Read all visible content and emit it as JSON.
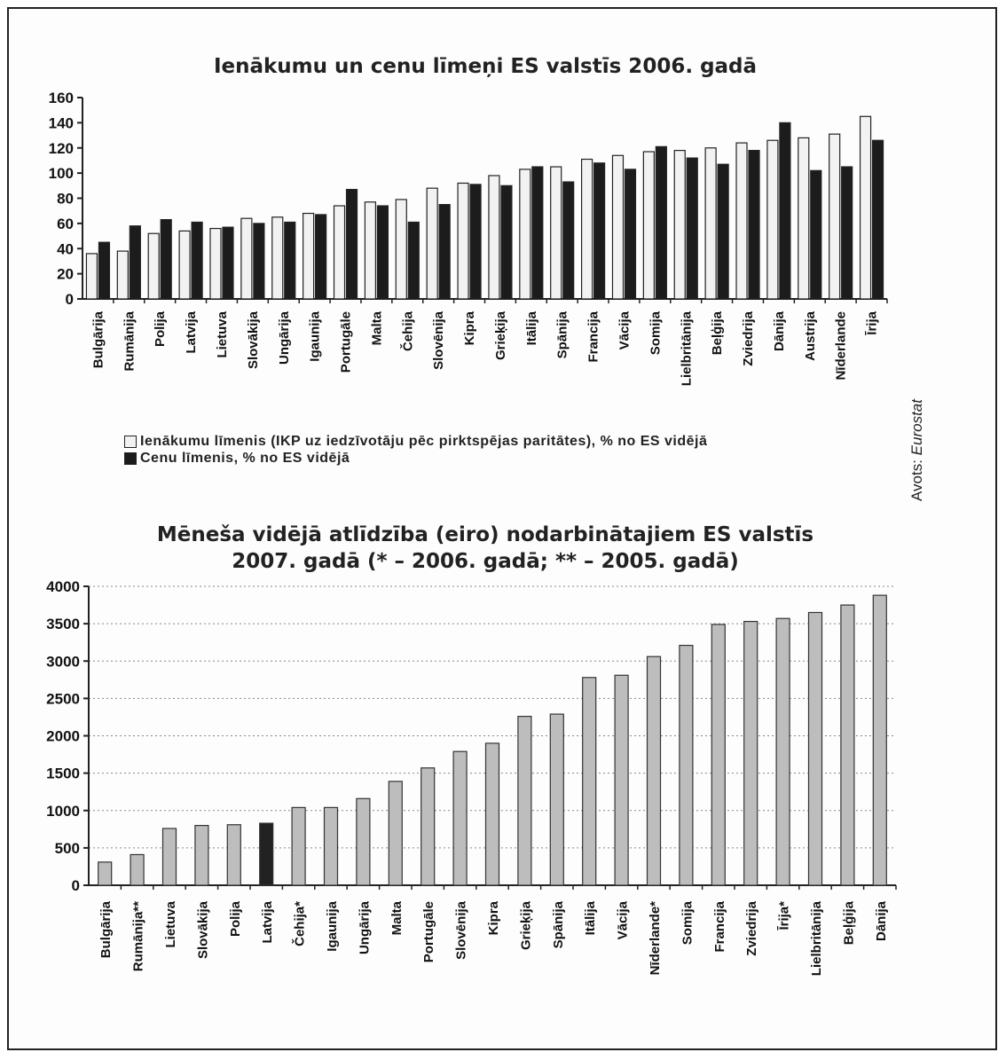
{
  "chart_data": [
    {
      "type": "bar",
      "title": "Ienākumu un cenu līmeņi ES valstīs 2006. gadā",
      "categories": [
        "Bulgārija",
        "Rumānija",
        "Polija",
        "Latvija",
        "Lietuva",
        "Slovākija",
        "Ungārija",
        "Igaunija",
        "Portugāle",
        "Malta",
        "Čehija",
        "Slovēnija",
        "Kipra",
        "Grieķija",
        "Itālija",
        "Spānija",
        "Francija",
        "Vācija",
        "Somija",
        "Lielbritānija",
        "Beļģija",
        "Zviedrija",
        "Dānija",
        "Austrija",
        "Nīderlande",
        "Īrija"
      ],
      "series": [
        {
          "name": "Ienākumu līmenis (IKP uz iedzīvotāju pēc pirktspējas paritātes), % no ES vidējā",
          "color": "#f2f2f2",
          "values": [
            36,
            38,
            52,
            54,
            56,
            64,
            65,
            68,
            74,
            77,
            79,
            88,
            92,
            98,
            103,
            105,
            111,
            114,
            117,
            118,
            120,
            124,
            126,
            128,
            131,
            145
          ]
        },
        {
          "name": "Cenu līmenis, % no ES vidējā",
          "color": "#1c1c1c",
          "values": [
            45,
            58,
            63,
            61,
            57,
            60,
            61,
            67,
            87,
            74,
            61,
            75,
            91,
            90,
            105,
            93,
            108,
            103,
            121,
            112,
            107,
            118,
            140,
            102,
            105,
            126
          ]
        }
      ],
      "ylim": [
        0,
        160
      ],
      "yticks": [
        0,
        20,
        40,
        60,
        80,
        100,
        120,
        140,
        160
      ],
      "xlabel": "",
      "ylabel": "",
      "grid": false,
      "legend": "bottom"
    },
    {
      "type": "bar",
      "title": "Mēneša vidējā atlīdzība (eiro) nodarbinātajiem ES valstīs 2007. gadā (* – 2006. gadā; ** – 2005. gadā)",
      "title_lines": [
        "Mēneša vidējā atlīdzība (eiro) nodarbinātajiem ES valstīs",
        "2007. gadā (* – 2006. gadā; ** – 2005. gadā)"
      ],
      "categories": [
        "Bulgārija",
        "Rumānija**",
        "Lietuva",
        "Slovākija",
        "Polija",
        "Latvija",
        "Čehija*",
        "Igaunija",
        "Ungārija",
        "Malta",
        "Portugāle",
        "Slovēnija",
        "Kipra",
        "Grieķija",
        "Spānija",
        "Itālija",
        "Vācija",
        "Nīderlande*",
        "Somija",
        "Francija",
        "Zviedrija",
        "Īrija*",
        "Lielbritānija",
        "Beļģija",
        "Dānija"
      ],
      "values": [
        310,
        410,
        760,
        800,
        810,
        830,
        1040,
        1040,
        1160,
        1390,
        1570,
        1790,
        1900,
        2260,
        2290,
        2780,
        2810,
        3060,
        3210,
        3490,
        3530,
        3570,
        3650,
        3750,
        3880
      ],
      "bar_color": "#bdbdbd",
      "highlight": {
        "category": "Latvija",
        "color": "#222222"
      },
      "ylim": [
        0,
        4000
      ],
      "yticks": [
        0,
        500,
        1000,
        1500,
        2000,
        2500,
        3000,
        3500,
        4000
      ],
      "xlabel": "",
      "ylabel": "",
      "grid": true
    }
  ],
  "source": {
    "prefix": "Avots:",
    "name": "Eurostat"
  }
}
